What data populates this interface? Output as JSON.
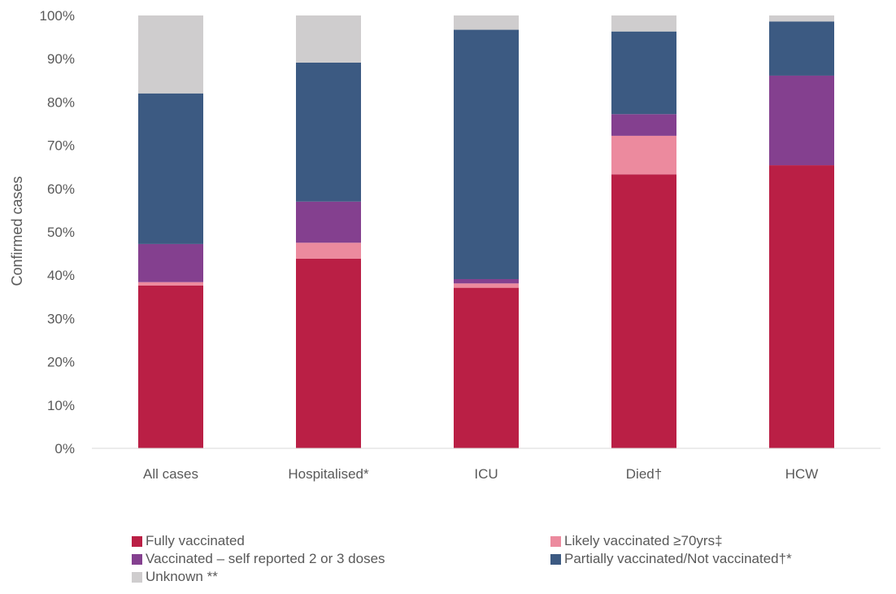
{
  "chart_data": {
    "type": "bar",
    "stacked": true,
    "ylabel": "Confirmed cases",
    "xlabel": "",
    "ylim": [
      0,
      100
    ],
    "yticks": [
      "0%",
      "10%",
      "20%",
      "30%",
      "40%",
      "50%",
      "60%",
      "70%",
      "80%",
      "90%",
      "100%"
    ],
    "categories": [
      "All cases",
      "Hospitalised*",
      "ICU",
      "Died†",
      "HCW"
    ],
    "series": [
      {
        "name": "Fully vaccinated",
        "color": "#BA1F45",
        "values": [
          37.6,
          43.8,
          37.1,
          63.3,
          65.4
        ]
      },
      {
        "name": "Likely vaccinated ≥70yrs‡",
        "color": "#EC8A9E",
        "values": [
          0.8,
          3.7,
          1.0,
          8.9,
          0.0
        ]
      },
      {
        "name": "Vaccinated – self reported 2 or 3 doses",
        "color": "#84408F",
        "values": [
          8.8,
          9.5,
          1.0,
          5.0,
          20.7
        ]
      },
      {
        "name": "Partially vaccinated/Not vaccinated†*",
        "color": "#3C5A82",
        "values": [
          34.8,
          32.1,
          57.6,
          19.1,
          12.5
        ]
      },
      {
        "name": "Unknown **",
        "color": "#CFCDCE",
        "values": [
          18.0,
          10.9,
          3.3,
          3.7,
          1.4
        ]
      }
    ],
    "grid": false,
    "legend_position": "bottom"
  }
}
